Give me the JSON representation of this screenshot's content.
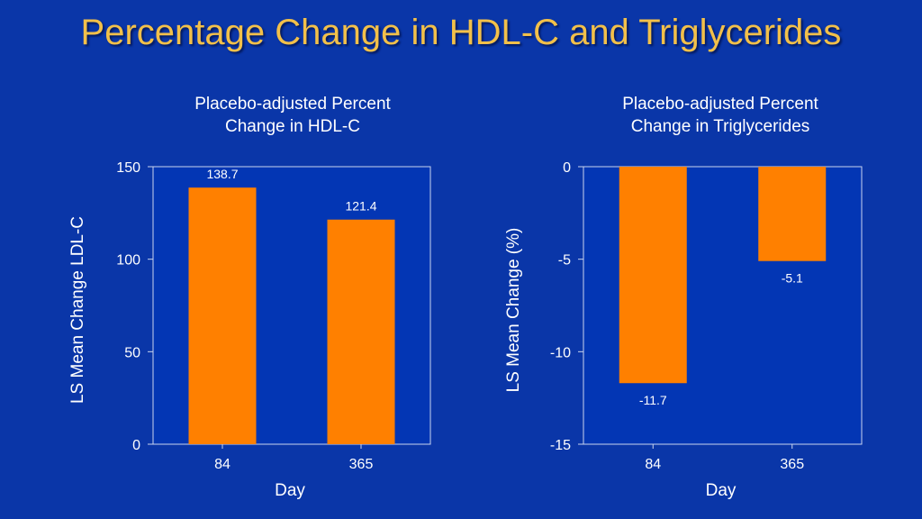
{
  "title": "Percentage Change in HDL-C and Triglycerides",
  "colors": {
    "background": "#0a36a8",
    "plot_bg": "#0336b4",
    "bar": "#ff8000",
    "title": "#f2c04a",
    "text": "#ffffff",
    "axis": "#c9d4ee"
  },
  "chart_data": [
    {
      "type": "bar",
      "title_lines": [
        "Placebo-adjusted Percent",
        "Change in HDL-C"
      ],
      "categories": [
        "84",
        "365"
      ],
      "values": [
        138.7,
        121.4
      ],
      "value_labels": [
        "138.7",
        "121.4"
      ],
      "ylim": [
        0,
        150
      ],
      "yticks": [
        0,
        50,
        100,
        150
      ],
      "ytick_labels": [
        "0",
        "50",
        "100",
        "150"
      ],
      "xlabel": "Day",
      "ylabel": "LS Mean Change LDL-C"
    },
    {
      "type": "bar",
      "title_lines": [
        "Placebo-adjusted Percent",
        "Change in Triglycerides"
      ],
      "categories": [
        "84",
        "365"
      ],
      "values": [
        -11.7,
        -5.1
      ],
      "value_labels": [
        "-11.7",
        "-5.1"
      ],
      "ylim": [
        -15,
        0
      ],
      "yticks": [
        -15,
        -10,
        -5,
        0
      ],
      "ytick_labels": [
        "-15",
        "-10",
        "-5",
        "0"
      ],
      "xlabel": "Day",
      "ylabel": "LS Mean Change (%)"
    }
  ]
}
